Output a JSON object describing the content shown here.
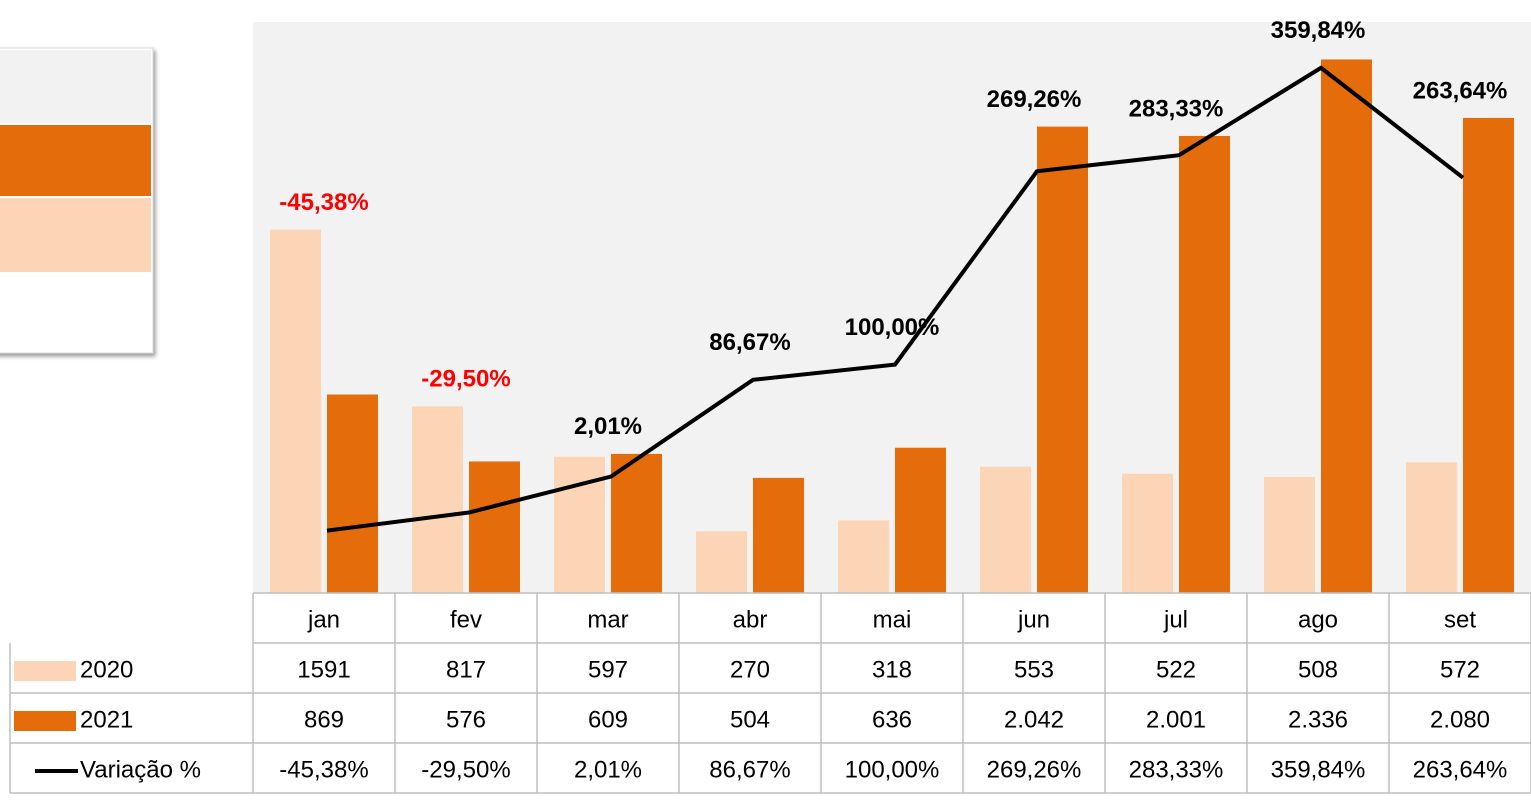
{
  "chart_data": {
    "type": "bar",
    "categories": [
      "jan",
      "fev",
      "mar",
      "abr",
      "mai",
      "jun",
      "jul",
      "ago",
      "set"
    ],
    "series": [
      {
        "name": "2020",
        "color": "#fbd5b5",
        "values": [
          1591,
          817,
          597,
          270,
          318,
          553,
          522,
          508,
          572
        ]
      },
      {
        "name": "2021",
        "color": "#e46c0a",
        "values": [
          869,
          576,
          609,
          504,
          636,
          2042,
          2001,
          2336,
          2080
        ],
        "value_labels": [
          "869",
          "576",
          "609",
          "504",
          "636",
          "2.042",
          "2.001",
          "2.336",
          "2.080"
        ]
      },
      {
        "name": "Variação %",
        "type": "line",
        "axis": "y2",
        "color": "#000000",
        "values": [
          -45.38,
          -29.5,
          2.01,
          86.67,
          100.0,
          269.26,
          283.33,
          359.84,
          263.64
        ],
        "value_labels": [
          "-45,38%",
          "-29,50%",
          "2,01%",
          "86,67%",
          "100,00%",
          "269,26%",
          "283,33%",
          "359,84%",
          "263,64%"
        ]
      }
    ],
    "ylim": [
      0,
      2500
    ],
    "y2lim": [
      -100,
      400
    ],
    "negative_label_color": "#ff0000",
    "data_table": true
  }
}
